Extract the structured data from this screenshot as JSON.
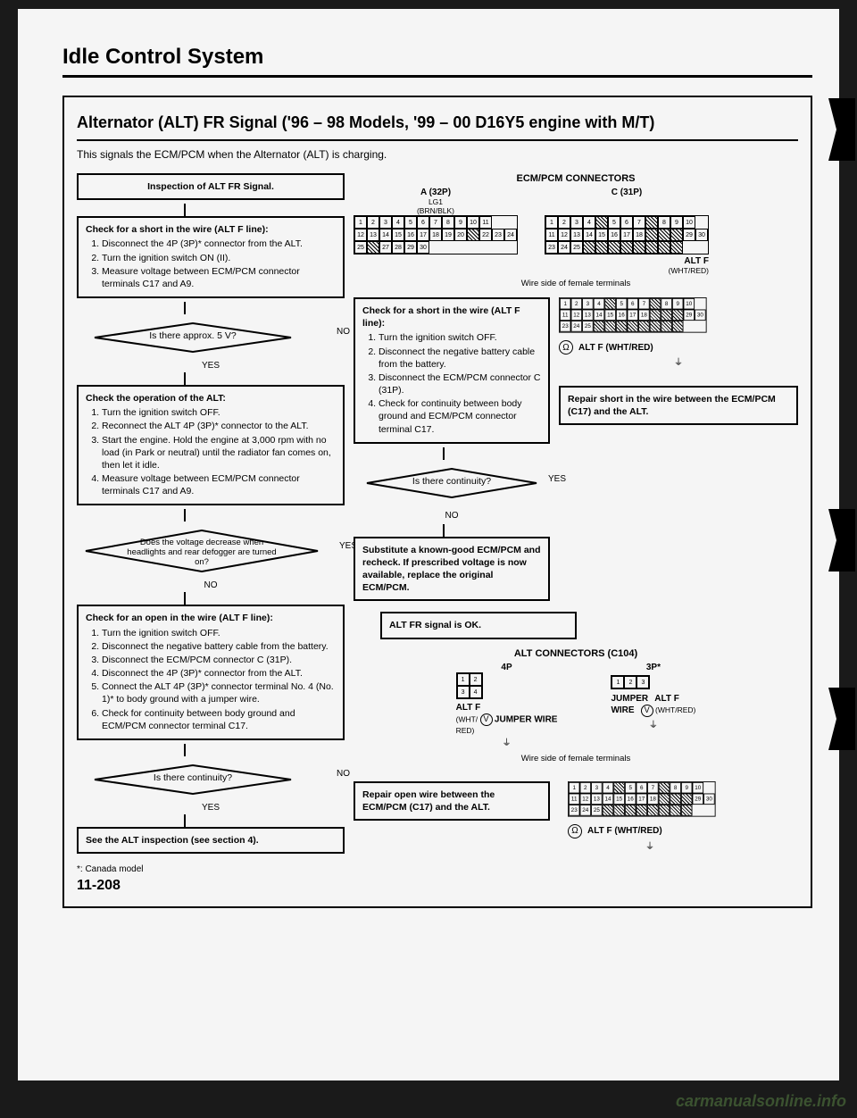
{
  "page": {
    "main_title": "Idle Control System",
    "sub_title": "Alternator (ALT) FR Signal ('96 – 98 Models, '99 – 00 D16Y5 engine with M/T)",
    "description": "This signals the ECM/PCM when the Alternator (ALT) is charging.",
    "footnote": "*: Canada model",
    "page_number": "11-208",
    "watermark": "carmanualsonline.info"
  },
  "flow": {
    "box_inspection": "Inspection of ALT FR Signal.",
    "box_check_short_altf": {
      "title": "Check for a short in the wire (ALT F line):",
      "steps": [
        "Disconnect the 4P (3P)* connector from the ALT.",
        "Turn the ignition switch ON (II).",
        "Measure voltage between ECM/PCM connector terminals C17 and A9."
      ]
    },
    "decision_5v": "Is there approx. 5 V?",
    "yes": "YES",
    "no": "NO",
    "box_check_alt_op": {
      "title": "Check the operation of the ALT:",
      "steps": [
        "Turn the ignition switch OFF.",
        "Reconnect the ALT 4P (3P)* connector to the ALT.",
        "Start the engine. Hold the engine at 3,000 rpm with no load (in Park or neutral) until the radiator fan comes on, then let it idle.",
        "Measure voltage between ECM/PCM connector terminals C17 and A9."
      ]
    },
    "decision_voltage_decrease": "Does the voltage decrease when headlights and rear defogger are turned on?",
    "box_check_open": {
      "title": "Check for an open in the wire (ALT F line):",
      "steps": [
        "Turn the ignition switch OFF.",
        "Disconnect the negative battery cable from the battery.",
        "Disconnect the ECM/PCM connector C (31P).",
        "Disconnect the 4P (3P)* connector from the ALT.",
        "Connect the ALT 4P (3P)* connector terminal No. 4 (No. 1)* to body ground with a jumper wire.",
        "Check for continuity between body ground and ECM/PCM connector terminal C17."
      ]
    },
    "decision_continuity1": "Is there continuity?",
    "box_see_alt": "See the ALT inspection (see section 4).",
    "box_check_short2": {
      "title": "Check for a short in the wire (ALT F line):",
      "steps": [
        "Turn the ignition switch OFF.",
        "Disconnect the negative battery cable from the battery.",
        "Disconnect the ECM/PCM connector C (31P).",
        "Check for continuity between body ground and ECM/PCM connector terminal C17."
      ]
    },
    "decision_continuity2": "Is there continuity?",
    "box_repair_short": "Repair short in the wire between the ECM/PCM (C17) and the ALT.",
    "box_substitute": "Substitute a known-good ECM/PCM and recheck. If prescribed voltage is now available, replace the original ECM/PCM.",
    "box_alt_fr_ok": "ALT FR signal is OK.",
    "box_repair_open": "Repair open wire between the ECM/PCM (C17) and the ALT."
  },
  "connectors": {
    "ecm_title": "ECM/PCM CONNECTORS",
    "a_label": "A (32P)",
    "c_label": "C (31P)",
    "lg1_label": "LG1",
    "brn_blk": "(BRN/BLK)",
    "wire_side": "Wire side of female terminals",
    "alt_f_label": "ALT F",
    "wht_red": "(WHT/RED)",
    "alt_f_wht_red": "ALT F (WHT/RED)",
    "alt_conn_title": "ALT CONNECTORS (C104)",
    "four_p": "4P",
    "three_p": "3P*",
    "jumper_wire": "JUMPER WIRE",
    "alt_f_wht_red_multi": "ALT F (WHT/ RED)",
    "a32_row1": [
      "1",
      "2",
      "3",
      "4",
      "5",
      "6",
      "7",
      "8",
      "9",
      "10",
      "11"
    ],
    "a32_row2": [
      "12",
      "13",
      "14",
      "15",
      "16",
      "17",
      "18",
      "19",
      "20",
      "",
      "22",
      "23",
      "24"
    ],
    "a32_row3": [
      "25",
      "",
      "27",
      "28",
      "29",
      "30"
    ],
    "c31_row1": [
      "1",
      "2",
      "3",
      "4",
      "5",
      "6",
      "7",
      "8",
      "9",
      "10"
    ],
    "c31_row2": [
      "11",
      "12",
      "13",
      "14",
      "15",
      "16",
      "17",
      "18",
      "",
      "",
      "",
      "29",
      "30"
    ],
    "c31_row3": [
      "23",
      "24",
      "25"
    ],
    "c31b_row1": [
      "1",
      "2",
      "3",
      "4",
      "5",
      "6",
      "7",
      "8",
      "9",
      "10"
    ],
    "c31b_row2": [
      "11",
      "12",
      "13",
      "14",
      "15",
      "16",
      "17",
      "18",
      "",
      "",
      "",
      "29",
      "30"
    ],
    "c31b_row3": [
      "23",
      "24",
      "25"
    ],
    "fourp_cells": [
      "1",
      "2",
      "3",
      "4"
    ],
    "threep_cells": [
      "1",
      "2",
      "3"
    ]
  },
  "colors": {
    "page_bg": "#f5f5f5",
    "text": "#000000",
    "outer_bg": "#1a1a1a",
    "watermark": "#4a6b3a"
  }
}
